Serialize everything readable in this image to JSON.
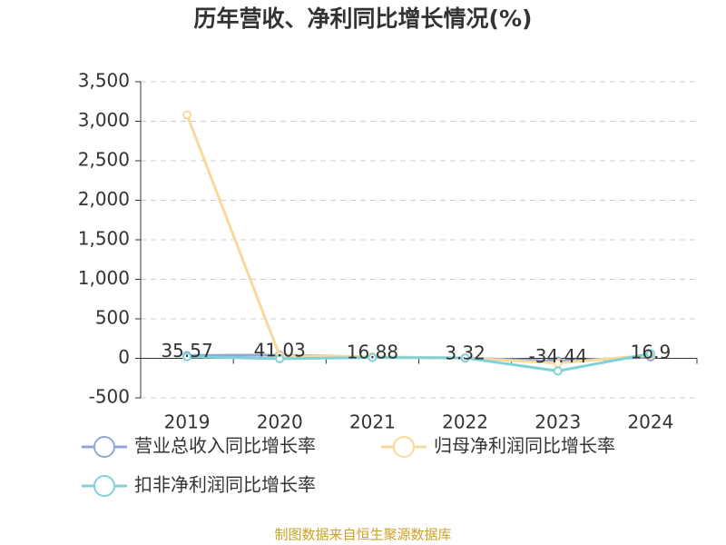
{
  "chart_data": {
    "type": "line",
    "title": "历年营收、净利同比增长情况(%)",
    "categories": [
      "2019",
      "2020",
      "2021",
      "2022",
      "2023",
      "2024"
    ],
    "series": [
      {
        "name": "营业总收入同比增长率",
        "color": "#8fa8d8",
        "values": [
          35.57,
          41.03,
          16.88,
          3.32,
          -34.44,
          16.9
        ]
      },
      {
        "name": "归母净利润同比增长率",
        "color": "#fad89a",
        "values": [
          3080,
          30,
          20,
          5,
          -60,
          40
        ]
      },
      {
        "name": "扣非净利润同比增长率",
        "color": "#7fd3d8",
        "values": [
          20,
          -5,
          10,
          5,
          -160,
          60
        ]
      }
    ],
    "data_labels_series": 0,
    "ylim": [
      -500,
      3500
    ],
    "yticks": [
      -500,
      0,
      500,
      {
        "value": 1000,
        "label": "1,000"
      },
      {
        "value": 1500,
        "label": "1,500"
      },
      {
        "value": 2000,
        "label": "2,000"
      },
      {
        "value": 2500,
        "label": "2,500"
      },
      {
        "value": 3000,
        "label": "3,000"
      },
      {
        "value": 3500,
        "label": "3,500"
      }
    ],
    "grid": true,
    "legend": "bottom",
    "source": "制图数据来自恒生聚源数据库"
  }
}
